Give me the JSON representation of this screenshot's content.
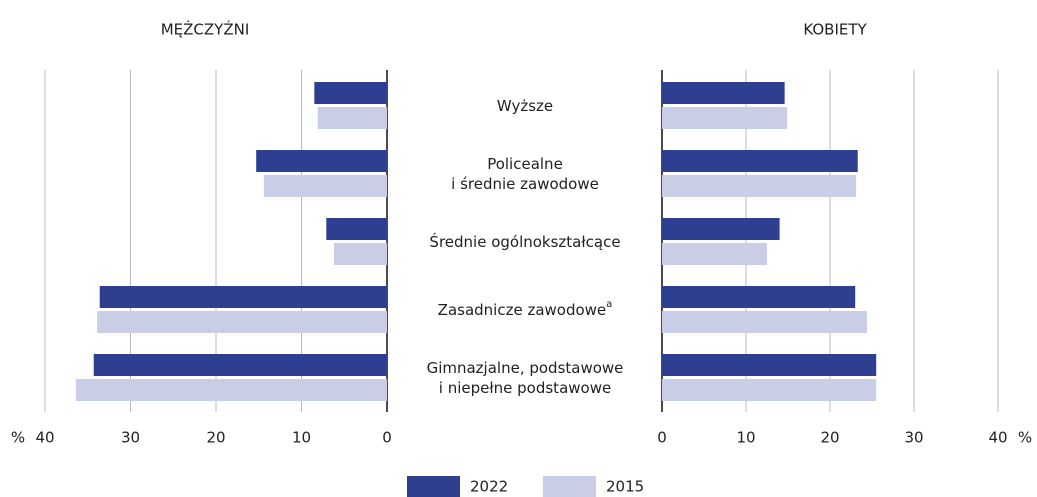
{
  "chart_data": {
    "type": "butterfly",
    "categories": [
      "Wyższe",
      "Policealne\ni średnie zawodowe",
      "Średnie ogólnokształcące",
      "Zasadnicze zawodowe",
      "Gimnazjalne, podstawowe\ni niepełne podstawowe"
    ],
    "category_notes": [
      null,
      null,
      null,
      "a",
      null
    ],
    "panels": [
      {
        "title": "MĘŻCZYŹNI",
        "xlim": [
          0,
          40
        ],
        "xticks": [
          0,
          10,
          20,
          30,
          40
        ],
        "unit": "%",
        "reversed": true
      },
      {
        "title": "KOBIETY",
        "xlim": [
          0,
          40
        ],
        "xticks": [
          0,
          10,
          20,
          30,
          40
        ],
        "unit": "%",
        "reversed": false
      }
    ],
    "series": [
      {
        "name": "2022",
        "color": "#2e3f8f",
        "values": [
          [
            8.5,
            15.3,
            7.1,
            33.6,
            34.3
          ],
          [
            14.6,
            23.3,
            14.0,
            23.0,
            25.5
          ]
        ]
      },
      {
        "name": "2015",
        "color": "#c9cee6",
        "values": [
          [
            8.1,
            14.4,
            6.2,
            33.9,
            36.4
          ],
          [
            14.9,
            23.1,
            12.5,
            24.4,
            25.5
          ]
        ]
      }
    ],
    "grid": true
  }
}
